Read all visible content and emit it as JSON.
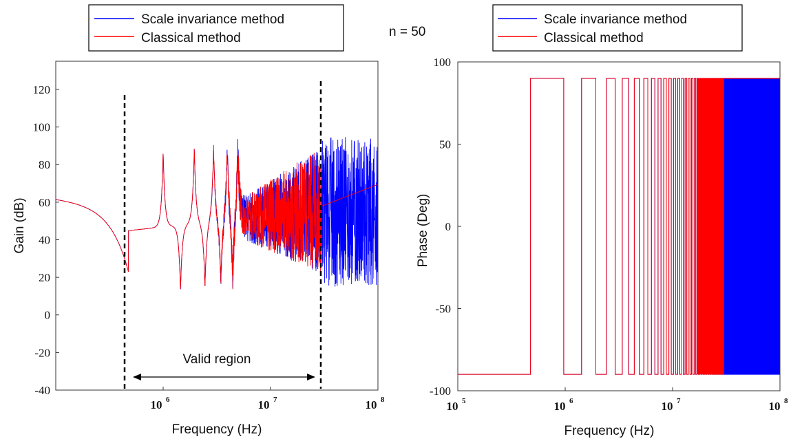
{
  "annotation": "n = 50",
  "chart_data": [
    {
      "type": "line",
      "xscale": "log",
      "xlim": [
        100000,
        100000000
      ],
      "ylim": [
        -40,
        135
      ],
      "xlabel": "Frequency (Hz)",
      "ylabel": "Gain (dB)",
      "yticks": [
        -40,
        -20,
        0,
        20,
        40,
        60,
        80,
        100,
        120
      ],
      "xticks": [
        {
          "base": "10",
          "exp": "6",
          "value": 1000000
        },
        {
          "base": "10",
          "exp": "7",
          "value": 10000000
        },
        {
          "base": "10",
          "exp": "8",
          "value": 100000000
        }
      ],
      "legend": [
        "Scale invariance method",
        "Classical method"
      ],
      "series": [
        {
          "name": "Scale invariance method",
          "color": "#0000ff"
        },
        {
          "name": "Classical method",
          "color": "#ff0000"
        }
      ],
      "resonances_hz": [
        475000,
        1000000,
        1450000,
        1950000,
        2450000,
        2950000,
        3450000,
        3950000,
        4450000,
        4950000
      ],
      "valid_region": {
        "label": "Valid region",
        "from_hz": 475000,
        "to_hz": 30000000
      },
      "legend_position": "top"
    },
    {
      "type": "line",
      "xscale": "log",
      "xlim": [
        100000,
        100000000
      ],
      "ylim": [
        -100,
        100
      ],
      "xlabel": "Frequency (Hz)",
      "ylabel": "Phase (Deg)",
      "yticks": [
        -100,
        -50,
        0,
        50,
        100
      ],
      "xticks": [
        {
          "base": "10",
          "exp": "5",
          "value": 100000
        },
        {
          "base": "10",
          "exp": "6",
          "value": 1000000
        },
        {
          "base": "10",
          "exp": "7",
          "value": 10000000
        },
        {
          "base": "10",
          "exp": "8",
          "value": 100000000
        }
      ],
      "legend": [
        "Scale invariance method",
        "Classical method"
      ],
      "series": [
        {
          "name": "Scale invariance method",
          "color": "#0000ff"
        },
        {
          "name": "Classical method",
          "color": "#ff0000"
        }
      ],
      "phase_levels": [
        -90,
        90
      ],
      "legend_position": "top"
    }
  ]
}
